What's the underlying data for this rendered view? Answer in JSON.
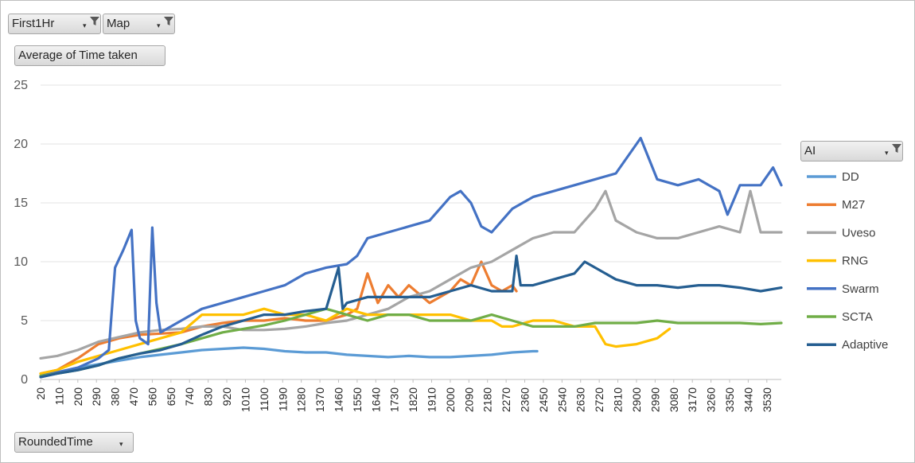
{
  "filters": {
    "first1hr": {
      "label": "First1Hr",
      "icon": "filter-icon"
    },
    "map": {
      "label": "Map",
      "icon": "filter-icon"
    },
    "ai": {
      "label": "AI",
      "icon": "filter-icon"
    },
    "rounded_time": {
      "label": "RoundedTime"
    }
  },
  "value_field": "Average of Time taken",
  "chart_data": {
    "type": "line",
    "title": "",
    "xlabel": "RoundedTime",
    "ylabel": "Average of Time taken",
    "ylim": [
      0,
      25
    ],
    "yticks": [
      0,
      5,
      10,
      15,
      20,
      25
    ],
    "xlim": [
      20,
      3600
    ],
    "xtick_labels": [
      20,
      110,
      200,
      290,
      380,
      470,
      560,
      650,
      740,
      830,
      920,
      1010,
      1100,
      1190,
      1280,
      1370,
      1460,
      1550,
      1640,
      1730,
      1820,
      1910,
      2000,
      2090,
      2180,
      2270,
      2360,
      2450,
      2540,
      2630,
      2720,
      2810,
      2900,
      2990,
      3080,
      3170,
      3260,
      3350,
      3440,
      3530
    ],
    "grid": "horizontal",
    "legend_position": "right",
    "series": [
      {
        "name": "DD",
        "color": "#5B9BD5",
        "x": [
          20,
          100,
          200,
          300,
          400,
          500,
          600,
          700,
          800,
          900,
          1000,
          1100,
          1200,
          1300,
          1400,
          1500,
          1600,
          1700,
          1800,
          1900,
          2000,
          2100,
          2200,
          2300,
          2400,
          2420
        ],
        "y": [
          0.3,
          0.6,
          1.0,
          1.3,
          1.6,
          1.9,
          2.1,
          2.3,
          2.5,
          2.6,
          2.7,
          2.6,
          2.4,
          2.3,
          2.3,
          2.1,
          2.0,
          1.9,
          2.0,
          1.9,
          1.9,
          2.0,
          2.1,
          2.3,
          2.4,
          2.4
        ]
      },
      {
        "name": "M27",
        "color": "#ED7D31",
        "x": [
          20,
          100,
          200,
          300,
          400,
          500,
          600,
          700,
          800,
          900,
          1000,
          1100,
          1200,
          1300,
          1400,
          1500,
          1550,
          1600,
          1650,
          1700,
          1750,
          1800,
          1900,
          2000,
          2050,
          2100,
          2150,
          2200,
          2250,
          2300,
          2320
        ],
        "y": [
          0.5,
          0.8,
          1.8,
          3.0,
          3.5,
          3.8,
          3.9,
          4.0,
          4.5,
          4.8,
          5.0,
          5.0,
          5.2,
          5.0,
          5.0,
          5.5,
          6.0,
          9.0,
          6.5,
          8.0,
          7.0,
          8.0,
          6.5,
          7.5,
          8.5,
          8.0,
          10.0,
          8.0,
          7.5,
          8.0,
          7.5
        ]
      },
      {
        "name": "Uveso",
        "color": "#A5A5A5",
        "x": [
          20,
          100,
          200,
          300,
          400,
          500,
          600,
          700,
          800,
          900,
          1000,
          1100,
          1200,
          1300,
          1400,
          1500,
          1600,
          1700,
          1800,
          1900,
          2000,
          2100,
          2200,
          2300,
          2400,
          2500,
          2600,
          2700,
          2750,
          2800,
          2900,
          3000,
          3100,
          3200,
          3300,
          3400,
          3450,
          3500,
          3600
        ],
        "y": [
          1.8,
          2.0,
          2.5,
          3.2,
          3.6,
          4.0,
          4.2,
          4.3,
          4.5,
          4.5,
          4.2,
          4.2,
          4.3,
          4.5,
          4.8,
          5.0,
          5.5,
          6.0,
          7.0,
          7.5,
          8.5,
          9.5,
          10.0,
          11.0,
          12.0,
          12.5,
          12.5,
          14.5,
          16.0,
          13.5,
          12.5,
          12.0,
          12.0,
          12.5,
          13.0,
          12.5,
          16.0,
          12.5,
          12.5
        ]
      },
      {
        "name": "RNG",
        "color": "#FFC000",
        "x": [
          20,
          100,
          200,
          300,
          400,
          500,
          600,
          700,
          800,
          900,
          1000,
          1100,
          1200,
          1300,
          1400,
          1500,
          1600,
          1700,
          1800,
          1900,
          2000,
          2100,
          2200,
          2250,
          2300,
          2400,
          2500,
          2600,
          2700,
          2750,
          2800,
          2900,
          3000,
          3060
        ],
        "y": [
          0.5,
          0.8,
          1.5,
          2.0,
          2.5,
          3.0,
          3.5,
          4.0,
          5.5,
          5.5,
          5.5,
          6.0,
          5.5,
          5.5,
          5.0,
          6.0,
          5.5,
          5.5,
          5.5,
          5.5,
          5.5,
          5.0,
          5.0,
          4.5,
          4.5,
          5.0,
          5.0,
          4.5,
          4.5,
          3.0,
          2.8,
          3.0,
          3.5,
          4.3
        ]
      },
      {
        "name": "Swarm",
        "color": "#4472C4",
        "x": [
          20,
          100,
          200,
          300,
          350,
          380,
          420,
          460,
          480,
          500,
          540,
          560,
          580,
          600,
          650,
          700,
          800,
          900,
          1000,
          1100,
          1200,
          1300,
          1400,
          1500,
          1550,
          1600,
          1700,
          1800,
          1900,
          2000,
          2050,
          2100,
          2150,
          2200,
          2300,
          2400,
          2500,
          2600,
          2700,
          2800,
          2900,
          2920,
          3000,
          3100,
          3200,
          3300,
          3340,
          3400,
          3500,
          3560,
          3600
        ],
        "y": [
          0.3,
          0.6,
          1.0,
          1.8,
          2.5,
          9.5,
          11.0,
          12.7,
          5.0,
          3.5,
          3.0,
          12.9,
          6.5,
          4.0,
          4.5,
          5.0,
          6.0,
          6.5,
          7.0,
          7.5,
          8.0,
          9.0,
          9.5,
          9.8,
          10.5,
          12.0,
          12.5,
          13.0,
          13.5,
          15.5,
          16.0,
          15.0,
          13.0,
          12.5,
          14.5,
          15.5,
          16.0,
          16.5,
          17.0,
          17.5,
          20.0,
          20.5,
          17.0,
          16.5,
          17.0,
          16.0,
          14.0,
          16.5,
          16.5,
          18.0,
          16.5
        ]
      },
      {
        "name": "SCTA",
        "color": "#70AD47",
        "x": [
          20,
          100,
          200,
          300,
          400,
          500,
          600,
          700,
          800,
          900,
          1000,
          1100,
          1200,
          1300,
          1400,
          1500,
          1600,
          1700,
          1800,
          1900,
          2000,
          2100,
          2200,
          2300,
          2400,
          2500,
          2600,
          2700,
          2800,
          2900,
          3000,
          3100,
          3200,
          3300,
          3400,
          3500,
          3600
        ],
        "y": [
          0.3,
          0.5,
          0.8,
          1.2,
          1.8,
          2.2,
          2.6,
          3.0,
          3.5,
          4.0,
          4.3,
          4.6,
          5.0,
          5.5,
          6.0,
          5.5,
          5.0,
          5.5,
          5.5,
          5.0,
          5.0,
          5.0,
          5.5,
          5.0,
          4.5,
          4.5,
          4.5,
          4.8,
          4.8,
          4.8,
          5.0,
          4.8,
          4.8,
          4.8,
          4.8,
          4.7,
          4.8
        ]
      },
      {
        "name": "Adaptive",
        "color": "#255E91",
        "x": [
          20,
          100,
          200,
          300,
          400,
          500,
          600,
          700,
          800,
          900,
          1000,
          1100,
          1200,
          1300,
          1400,
          1460,
          1480,
          1500,
          1600,
          1700,
          1800,
          1900,
          2000,
          2100,
          2200,
          2300,
          2320,
          2340,
          2400,
          2500,
          2600,
          2650,
          2700,
          2800,
          2900,
          3000,
          3100,
          3200,
          3300,
          3400,
          3500,
          3600
        ],
        "y": [
          0.2,
          0.5,
          0.8,
          1.2,
          1.8,
          2.2,
          2.5,
          3.0,
          3.8,
          4.5,
          5.0,
          5.5,
          5.5,
          5.8,
          6.0,
          9.5,
          6.0,
          6.5,
          7.0,
          7.0,
          7.0,
          7.0,
          7.5,
          8.0,
          7.5,
          7.5,
          10.5,
          8.0,
          8.0,
          8.5,
          9.0,
          10.0,
          9.5,
          8.5,
          8.0,
          8.0,
          7.8,
          8.0,
          8.0,
          7.8,
          7.5,
          7.8
        ]
      }
    ]
  }
}
